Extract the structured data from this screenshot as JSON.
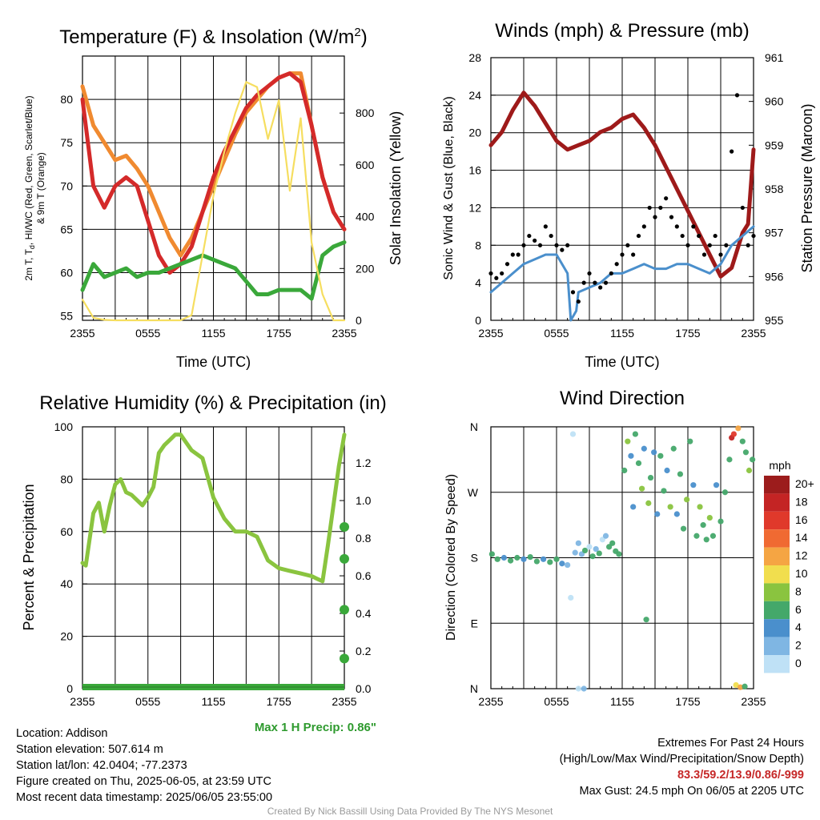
{
  "chart_data": [
    {
      "id": "temp",
      "type": "line",
      "title": "Temperature (F) & Insolation (W/m²)",
      "title_main": "Temperature (F) & Insolation (W/m",
      "title_sup": "2",
      "title_end": ")",
      "xlabel": "Time (UTC)",
      "ylabel_lines": [
        "2m T, T",
        "d",
        ", HI/WC (Red, Green, Scarlet/Blue)",
        "& 9m T (Orange)"
      ],
      "y2label": "Solar Insolation (Yellow)",
      "xticks": [
        "2355",
        "0555",
        "1155",
        "1755",
        "2355"
      ],
      "ylim": [
        54.5,
        85
      ],
      "yticks": [
        55,
        60,
        65,
        70,
        75,
        80
      ],
      "y2lim": [
        0,
        1020
      ],
      "y2ticks": [
        0,
        200,
        400,
        600,
        800
      ],
      "grid": true,
      "series": [
        {
          "color": "#f08a30",
          "axis": "left",
          "x": [
            0,
            1,
            2,
            3,
            4,
            5,
            6,
            7,
            8,
            9,
            10,
            11,
            12,
            13,
            14,
            15,
            16,
            17,
            18,
            19,
            20,
            21,
            22,
            23,
            24
          ],
          "y": [
            81.5,
            77,
            75,
            73,
            73.5,
            72,
            70,
            67,
            64,
            62,
            64,
            67,
            70,
            73,
            76,
            78.5,
            80,
            81.5,
            82.5,
            83,
            83,
            77,
            71,
            67,
            65
          ]
        },
        {
          "color": "#d42a2a",
          "axis": "left",
          "x": [
            0,
            1,
            2,
            3,
            4,
            5,
            6,
            7,
            8,
            9,
            10,
            11,
            12,
            13,
            14,
            15,
            16,
            17,
            18,
            19,
            20,
            21,
            22,
            23,
            24
          ],
          "y": [
            80,
            70,
            67.5,
            70,
            71,
            70,
            66,
            62,
            60,
            61,
            63,
            67,
            71,
            74,
            76.5,
            79,
            80.5,
            81.5,
            82.5,
            83,
            82,
            77,
            71,
            67,
            65
          ]
        },
        {
          "color": "#3aa83a",
          "axis": "left",
          "x": [
            0,
            1,
            2,
            3,
            4,
            5,
            6,
            7,
            8,
            9,
            10,
            11,
            12,
            13,
            14,
            15,
            16,
            17,
            18,
            19,
            20,
            21,
            22,
            23,
            24
          ],
          "y": [
            58,
            61,
            59.5,
            60,
            60.5,
            59.5,
            60,
            60,
            60.5,
            61,
            61.5,
            62,
            61.5,
            61,
            60.5,
            59,
            57.5,
            57.5,
            58,
            58,
            58,
            57,
            62,
            63,
            63.5
          ]
        },
        {
          "color": "#f6de60",
          "axis": "right",
          "x": [
            0,
            1,
            2,
            3,
            4,
            5,
            6,
            7,
            8,
            9,
            10,
            11,
            12,
            13,
            14,
            15,
            16,
            17,
            18,
            19,
            20,
            21,
            22,
            23,
            24
          ],
          "y": [
            80,
            10,
            2,
            0,
            0,
            0,
            0,
            0,
            0,
            0,
            20,
            250,
            480,
            650,
            800,
            920,
            900,
            700,
            850,
            500,
            780,
            300,
            100,
            0,
            0
          ]
        }
      ]
    },
    {
      "id": "wind",
      "type": "line",
      "title": "Winds (mph) & Pressure (mb)",
      "xlabel": "Time (UTC)",
      "ylabel": "Sonic Wind & Gust (Blue, Black)",
      "y2label": "Station Pressure (Maroon)",
      "xticks": [
        "2355",
        "0555",
        "1155",
        "1755",
        "2355"
      ],
      "ylim": [
        0,
        28
      ],
      "yticks": [
        0,
        4,
        8,
        12,
        16,
        20,
        24,
        28
      ],
      "y2lim": [
        955,
        961
      ],
      "y2ticks": [
        955,
        956,
        957,
        958,
        959,
        960,
        961
      ],
      "grid": true,
      "series": [
        {
          "color": "#9e1a1a",
          "axis": "right",
          "x": [
            0,
            1,
            2,
            3,
            4,
            5,
            6,
            7,
            8,
            9,
            10,
            11,
            12,
            13,
            14,
            15,
            16,
            17,
            18,
            19,
            20,
            21,
            22,
            23,
            23.5,
            24
          ],
          "y": [
            959,
            959.3,
            959.8,
            960.2,
            959.9,
            959.5,
            959.1,
            958.9,
            959,
            959.1,
            959.3,
            959.4,
            959.6,
            959.7,
            959.4,
            959,
            958.5,
            958,
            957.5,
            957,
            956.5,
            956,
            956.2,
            957,
            957.2,
            958.9
          ]
        },
        {
          "color": "#4a8fcc",
          "axis": "left",
          "x": [
            0,
            1,
            2,
            3,
            4,
            5,
            6,
            7,
            7.3,
            7.8,
            8,
            9,
            10,
            11,
            12,
            13,
            14,
            15,
            16,
            17,
            18,
            19,
            20,
            21,
            22,
            23,
            24
          ],
          "y": [
            3,
            4,
            5,
            6,
            6.5,
            7,
            7,
            5,
            0,
            1,
            3,
            3.5,
            4,
            5,
            5,
            5.5,
            6,
            5.5,
            5.5,
            6,
            6,
            5.5,
            5,
            6,
            8,
            9,
            10
          ]
        },
        {
          "color": "#000000",
          "axis": "left",
          "kind": "points",
          "x": [
            0,
            0.5,
            1,
            1.5,
            2,
            2.5,
            3,
            3.5,
            4,
            4.5,
            5,
            5.5,
            6,
            6.5,
            7,
            7.5,
            8,
            8.5,
            9,
            9.5,
            10,
            10.5,
            11,
            11.5,
            12,
            12.5,
            13,
            13.5,
            14,
            14.5,
            15,
            15.5,
            16,
            16.5,
            17,
            17.5,
            18,
            18.5,
            19,
            19.5,
            20,
            20.5,
            21,
            21.5,
            22,
            22.5,
            23,
            23.5,
            24
          ],
          "y": [
            5,
            4.5,
            5,
            6,
            7,
            7,
            8,
            9,
            8.5,
            8,
            10,
            9,
            8,
            7.5,
            8,
            3,
            2,
            4,
            5,
            4,
            3.5,
            4,
            5,
            6,
            7,
            8,
            7,
            9,
            10,
            12,
            11,
            12,
            13,
            11,
            10,
            9,
            8,
            10,
            9,
            7,
            8,
            9,
            7,
            8,
            18,
            24,
            12,
            8,
            9
          ]
        }
      ]
    },
    {
      "id": "rh",
      "type": "line",
      "title": "Relative Humidity (%) & Precipitation (in)",
      "ylabel": "Percent & Precipitation",
      "xticks": [
        "2355",
        "0555",
        "1155",
        "1755",
        "2355"
      ],
      "ylim": [
        0,
        100
      ],
      "yticks": [
        0,
        20,
        40,
        60,
        80,
        100
      ],
      "y2lim": [
        0,
        1.392
      ],
      "y2ticks": [
        "0.0",
        "0.2",
        "0.4",
        "0.6",
        "0.8",
        "1.0",
        "1.2"
      ],
      "grid": true,
      "series": [
        {
          "color": "#8ac43f",
          "axis": "left",
          "x": [
            0,
            0.3,
            1,
            1.5,
            2,
            2.5,
            3,
            3.5,
            4,
            4.5,
            5,
            5.5,
            6,
            6.5,
            7,
            7.5,
            8,
            8.5,
            9,
            9.5,
            10,
            11,
            12,
            13,
            14,
            15,
            16,
            17,
            18,
            19,
            20,
            21,
            21.5,
            22,
            22.5,
            23,
            23.5,
            24
          ],
          "y": [
            48,
            47,
            67,
            71,
            60,
            70,
            78,
            80,
            75,
            74,
            72,
            70,
            73,
            77,
            90,
            93,
            95,
            97,
            97,
            94,
            91,
            88,
            73,
            65,
            60,
            60,
            58,
            49,
            46,
            45,
            44,
            43,
            42,
            41,
            55,
            70,
            85,
            97
          ]
        },
        {
          "color": "#3aa83a",
          "axis": "right",
          "kind": "points",
          "x": [
            24,
            24,
            24,
            24
          ],
          "y": [
            0.86,
            0.69,
            0.42,
            0.16
          ]
        }
      ]
    },
    {
      "id": "wdir",
      "type": "scatter",
      "title": "Wind Direction",
      "ylabel": "Direction (Colored By Speed)",
      "xticks": [
        "2355",
        "0555",
        "1155",
        "1755",
        "2355"
      ],
      "yticks": [
        "N",
        "E",
        "S",
        "W",
        "N"
      ],
      "ylim": [
        0,
        360
      ],
      "grid": true,
      "colorbar": {
        "label": "mph",
        "levels": [
          "20+",
          "18",
          "16",
          "14",
          "12",
          "10",
          "8",
          "6",
          "4",
          "2",
          "0"
        ],
        "colors": [
          "#9c1c1c",
          "#c42424",
          "#e0392b",
          "#f06a32",
          "#f5a543",
          "#f1de4e",
          "#8ac43f",
          "#44a86a",
          "#4a8fcc",
          "#7fb6e3",
          "#bfe1f6"
        ]
      },
      "points": [
        {
          "x": 0.1,
          "y": 185,
          "c": 3
        },
        {
          "x": 0.6,
          "y": 178,
          "c": 3
        },
        {
          "x": 1.2,
          "y": 180,
          "c": 2
        },
        {
          "x": 1.8,
          "y": 176,
          "c": 3
        },
        {
          "x": 2.4,
          "y": 180,
          "c": 3
        },
        {
          "x": 3.0,
          "y": 178,
          "c": 2
        },
        {
          "x": 3.6,
          "y": 181,
          "c": 3
        },
        {
          "x": 4.2,
          "y": 175,
          "c": 3
        },
        {
          "x": 4.8,
          "y": 178,
          "c": 2
        },
        {
          "x": 5.4,
          "y": 174,
          "c": 3
        },
        {
          "x": 6.0,
          "y": 178,
          "c": 3
        },
        {
          "x": 6.5,
          "y": 172,
          "c": 2
        },
        {
          "x": 7.0,
          "y": 170,
          "c": 1
        },
        {
          "x": 7.3,
          "y": 125,
          "c": 0
        },
        {
          "x": 7.5,
          "y": 350,
          "c": 0
        },
        {
          "x": 7.7,
          "y": 187,
          "c": 1
        },
        {
          "x": 8.0,
          "y": 200,
          "c": 1
        },
        {
          "x": 8.3,
          "y": 185,
          "c": 1
        },
        {
          "x": 8.6,
          "y": 190,
          "c": 3
        },
        {
          "x": 9.0,
          "y": 195,
          "c": 0
        },
        {
          "x": 9.3,
          "y": 182,
          "c": 3
        },
        {
          "x": 9.6,
          "y": 192,
          "c": 1
        },
        {
          "x": 9.9,
          "y": 186,
          "c": 3
        },
        {
          "x": 10.2,
          "y": 205,
          "c": 0
        },
        {
          "x": 10.5,
          "y": 210,
          "c": 1
        },
        {
          "x": 10.8,
          "y": 195,
          "c": 3
        },
        {
          "x": 11.1,
          "y": 200,
          "c": 3
        },
        {
          "x": 11.4,
          "y": 189,
          "c": 3
        },
        {
          "x": 11.7,
          "y": 185,
          "c": 3
        },
        {
          "x": 12.2,
          "y": 300,
          "c": 3
        },
        {
          "x": 12.5,
          "y": 340,
          "c": 4
        },
        {
          "x": 12.8,
          "y": 320,
          "c": 2
        },
        {
          "x": 13.0,
          "y": 250,
          "c": 2
        },
        {
          "x": 13.2,
          "y": 350,
          "c": 3
        },
        {
          "x": 13.5,
          "y": 310,
          "c": 3
        },
        {
          "x": 13.8,
          "y": 275,
          "c": 4
        },
        {
          "x": 14.0,
          "y": 330,
          "c": 2
        },
        {
          "x": 14.2,
          "y": 95,
          "c": 3
        },
        {
          "x": 14.4,
          "y": 255,
          "c": 4
        },
        {
          "x": 14.6,
          "y": 290,
          "c": 3
        },
        {
          "x": 14.9,
          "y": 325,
          "c": 2
        },
        {
          "x": 15.2,
          "y": 240,
          "c": 2
        },
        {
          "x": 15.5,
          "y": 320,
          "c": 3
        },
        {
          "x": 15.8,
          "y": 272,
          "c": 3
        },
        {
          "x": 16.1,
          "y": 300,
          "c": 2
        },
        {
          "x": 16.4,
          "y": 250,
          "c": 4
        },
        {
          "x": 16.7,
          "y": 330,
          "c": 3
        },
        {
          "x": 17.0,
          "y": 240,
          "c": 2
        },
        {
          "x": 17.3,
          "y": 295,
          "c": 3
        },
        {
          "x": 17.6,
          "y": 220,
          "c": 3
        },
        {
          "x": 17.9,
          "y": 260,
          "c": 4
        },
        {
          "x": 18.2,
          "y": 340,
          "c": 3
        },
        {
          "x": 18.5,
          "y": 280,
          "c": 2
        },
        {
          "x": 18.8,
          "y": 210,
          "c": 3
        },
        {
          "x": 19.1,
          "y": 250,
          "c": 4
        },
        {
          "x": 19.4,
          "y": 225,
          "c": 3
        },
        {
          "x": 19.7,
          "y": 205,
          "c": 3
        },
        {
          "x": 20.0,
          "y": 235,
          "c": 4
        },
        {
          "x": 20.3,
          "y": 210,
          "c": 3
        },
        {
          "x": 20.6,
          "y": 280,
          "c": 2
        },
        {
          "x": 21.0,
          "y": 230,
          "c": 3
        },
        {
          "x": 21.4,
          "y": 270,
          "c": 3
        },
        {
          "x": 21.8,
          "y": 315,
          "c": 3
        },
        {
          "x": 22.0,
          "y": 345,
          "c": 9
        },
        {
          "x": 22.2,
          "y": 350,
          "c": 8
        },
        {
          "x": 22.4,
          "y": 5,
          "c": 5
        },
        {
          "x": 22.6,
          "y": 358,
          "c": 6
        },
        {
          "x": 22.8,
          "y": 2,
          "c": 6
        },
        {
          "x": 23.0,
          "y": 340,
          "c": 3
        },
        {
          "x": 23.3,
          "y": 325,
          "c": 3
        },
        {
          "x": 23.6,
          "y": 300,
          "c": 4
        },
        {
          "x": 23.9,
          "y": 315,
          "c": 3
        },
        {
          "x": 23.2,
          "y": 3,
          "c": 3
        },
        {
          "x": 8.0,
          "y": 0,
          "c": 0
        },
        {
          "x": 8.5,
          "y": 0,
          "c": 1
        }
      ]
    }
  ],
  "info": {
    "location": "Location: Addison",
    "elevation": "Station elevation: 507.614 m",
    "latlon": "Station lat/lon: 42.0404; -77.2373",
    "created": "Figure created on Thu, 2025-06-05, at 23:59 UTC",
    "recent": "Most recent data timestamp: 2025/06/05 23:55:00",
    "precip": "Max 1 H Precip: 0.86\"",
    "extremes_title": "Extremes For Past 24 Hours",
    "extremes_sub": "(High/Low/Max Wind/Precipitation/Snow Depth)",
    "extremes_vals": "83.3/59.2/13.9/0.86/-999",
    "max_gust": "Max Gust: 24.5 mph On 06/05 at 2205 UTC",
    "credit": "Created By Nick Bassill Using Data Provided By The NYS Mesonet"
  }
}
